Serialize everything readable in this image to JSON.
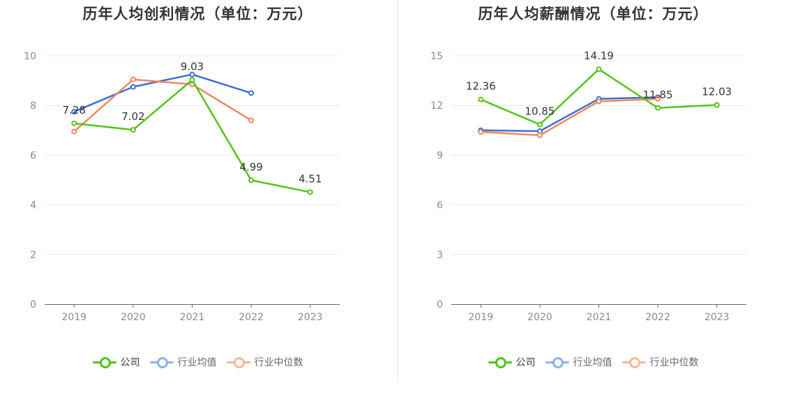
{
  "colors": {
    "company": "#52c41a",
    "industry_avg": "#3a6fd8",
    "industry_median": "#f0885c",
    "grid": "#e8e8ee",
    "axis": "#666666",
    "tick_text": "#8a8a8a",
    "label_text": "#333333"
  },
  "chart_data": [
    {
      "type": "line",
      "title": "历年人均创利情况（单位：万元）",
      "categories": [
        "2019",
        "2020",
        "2021",
        "2022",
        "2023"
      ],
      "ylim": [
        0,
        10
      ],
      "yticks": [
        "0",
        "2",
        "4",
        "6",
        "8",
        "10"
      ],
      "grid": true,
      "legend_position": "bottom",
      "series": [
        {
          "name": "公司",
          "key": "company",
          "values": [
            7.28,
            7.02,
            9.03,
            4.99,
            4.51
          ],
          "labels": [
            "7.28",
            "7.02",
            "9.03",
            "4.99",
            "4.51"
          ]
        },
        {
          "name": "行业均值",
          "key": "industry_avg",
          "values": [
            7.75,
            8.75,
            9.25,
            8.5,
            null
          ],
          "labels": []
        },
        {
          "name": "行业中位数",
          "key": "industry_median",
          "values": [
            6.95,
            9.05,
            8.85,
            7.4,
            null
          ],
          "labels": []
        }
      ]
    },
    {
      "type": "line",
      "title": "历年人均薪酬情况（单位：万元）",
      "categories": [
        "2019",
        "2020",
        "2021",
        "2022",
        "2023"
      ],
      "ylim": [
        0,
        15
      ],
      "yticks": [
        "0",
        "3",
        "6",
        "9",
        "12",
        "15"
      ],
      "grid": true,
      "legend_position": "bottom",
      "series": [
        {
          "name": "公司",
          "key": "company",
          "values": [
            12.36,
            10.85,
            14.19,
            11.85,
            12.03
          ],
          "labels": [
            "12.36",
            "10.85",
            "14.19",
            "11.85",
            "12.03"
          ]
        },
        {
          "name": "行业均值",
          "key": "industry_avg",
          "values": [
            10.5,
            10.45,
            12.4,
            12.5,
            null
          ],
          "labels": []
        },
        {
          "name": "行业中位数",
          "key": "industry_median",
          "values": [
            10.4,
            10.2,
            12.25,
            12.4,
            null
          ],
          "labels": []
        }
      ]
    }
  ],
  "legend": [
    {
      "label": "公司",
      "key": "company",
      "active": true
    },
    {
      "label": "行业均值",
      "key": "industry_avg",
      "active": false
    },
    {
      "label": "行业中位数",
      "key": "industry_median",
      "active": false
    }
  ]
}
